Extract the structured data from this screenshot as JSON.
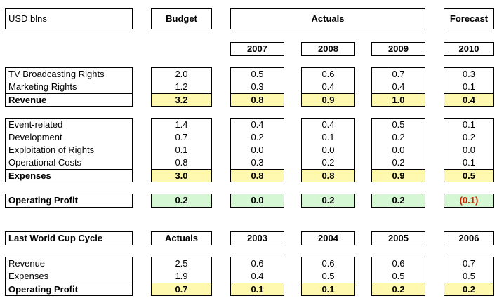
{
  "header": {
    "units": "USD blns",
    "budget": "Budget",
    "actuals": "Actuals",
    "forecast": "Forecast",
    "years": [
      "2007",
      "2008",
      "2009",
      "2010"
    ]
  },
  "rows": {
    "tv": {
      "label": "TV Broadcasting Rights",
      "values": [
        "2.0",
        "0.5",
        "0.6",
        "0.7",
        "0.3"
      ]
    },
    "mkt": {
      "label": "Marketing Rights",
      "values": [
        "1.2",
        "0.3",
        "0.4",
        "0.4",
        "0.1"
      ]
    },
    "revenue": {
      "label": "Revenue",
      "values": [
        "3.2",
        "0.8",
        "0.9",
        "1.0",
        "0.4"
      ]
    },
    "event": {
      "label": "Event-related",
      "values": [
        "1.4",
        "0.4",
        "0.4",
        "0.5",
        "0.1"
      ]
    },
    "dev": {
      "label": "Development",
      "values": [
        "0.7",
        "0.2",
        "0.1",
        "0.2",
        "0.2"
      ]
    },
    "expl": {
      "label": "Exploitation of Rights",
      "values": [
        "0.1",
        "0.0",
        "0.0",
        "0.0",
        "0.0"
      ]
    },
    "ops": {
      "label": "Operational Costs",
      "values": [
        "0.8",
        "0.3",
        "0.2",
        "0.2",
        "0.1"
      ]
    },
    "expenses": {
      "label": "Expenses",
      "values": [
        "3.0",
        "0.8",
        "0.8",
        "0.9",
        "0.5"
      ]
    },
    "profit": {
      "label": "Operating Profit",
      "values": [
        "0.2",
        "0.0",
        "0.2",
        "0.2",
        "(0.1)"
      ]
    }
  },
  "last_cycle": {
    "title": "Last World Cup Cycle",
    "col0": "Actuals",
    "years": [
      "2003",
      "2004",
      "2005",
      "2006"
    ],
    "revenue": {
      "label": "Revenue",
      "values": [
        "2.5",
        "0.6",
        "0.6",
        "0.6",
        "0.7"
      ]
    },
    "expenses": {
      "label": "Expenses",
      "values": [
        "1.9",
        "0.4",
        "0.5",
        "0.5",
        "0.5"
      ]
    },
    "profit": {
      "label": "Operating Profit",
      "values": [
        "0.7",
        "0.1",
        "0.1",
        "0.2",
        "0.2"
      ]
    }
  },
  "colors": {
    "highlight_yellow": "#fff9b0",
    "highlight_green": "#d6f7d3",
    "negative_red": "#cc2200"
  }
}
